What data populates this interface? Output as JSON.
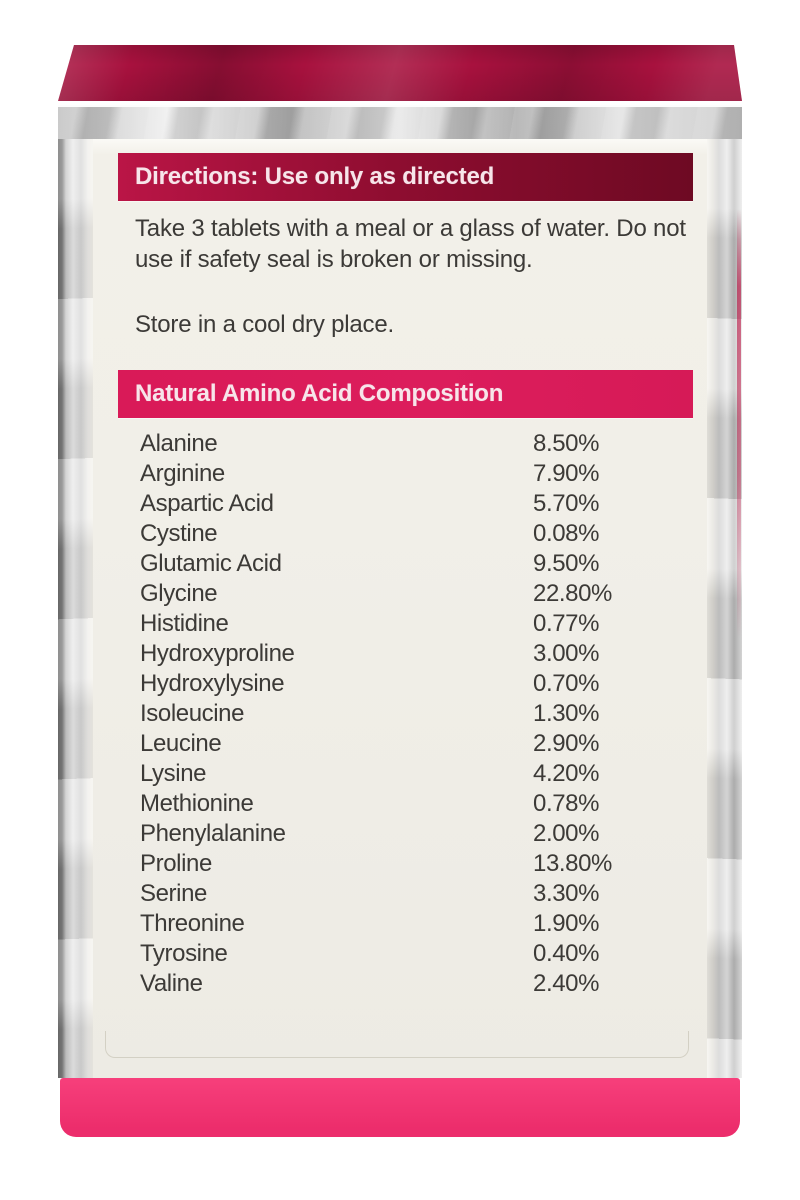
{
  "label": {
    "directions": {
      "heading": "Directions: Use only as directed",
      "body": "Take 3 tablets with a meal or a glass of water. Do not\nuse if safety seal is broken or missing.",
      "storage": "Store in a cool dry place."
    },
    "composition": {
      "heading": "Natural Amino Acid Composition",
      "rows": [
        {
          "name": "Alanine",
          "value": "8.50%"
        },
        {
          "name": "Arginine",
          "value": "7.90%"
        },
        {
          "name": "Aspartic Acid",
          "value": "5.70%"
        },
        {
          "name": "Cystine",
          "value": "0.08%"
        },
        {
          "name": "Glutamic Acid",
          "value": "9.50%"
        },
        {
          "name": "Glycine",
          "value": "22.80%"
        },
        {
          "name": "Histidine",
          "value": "0.77%"
        },
        {
          "name": "Hydroxyproline",
          "value": "3.00%"
        },
        {
          "name": "Hydroxylysine",
          "value": "0.70%"
        },
        {
          "name": "Isoleucine",
          "value": "1.30%"
        },
        {
          "name": "Leucine",
          "value": "2.90%"
        },
        {
          "name": "Lysine",
          "value": "4.20%"
        },
        {
          "name": "Methionine",
          "value": "0.78%"
        },
        {
          "name": "Phenylalanine",
          "value": "2.00%"
        },
        {
          "name": "Proline",
          "value": "13.80%"
        },
        {
          "name": "Serine",
          "value": "3.30%"
        },
        {
          "name": "Threonine",
          "value": "1.90%"
        },
        {
          "name": "Tyrosine",
          "value": "0.40%"
        },
        {
          "name": "Valine",
          "value": "2.40%"
        }
      ]
    }
  },
  "colors": {
    "page_bg": "#ffffff",
    "foil_red": "#a8113e",
    "foil_silver": "#cfcfcf",
    "label_bg": "#f1efe8",
    "dir_bar_left": "#ba1546",
    "dir_bar_right": "#6e0a23",
    "comp_bar": "#dc1d5c",
    "bar_text": "#f7e5ea",
    "body_text": "#3c3a37",
    "bottom_band": "#f62f70"
  }
}
